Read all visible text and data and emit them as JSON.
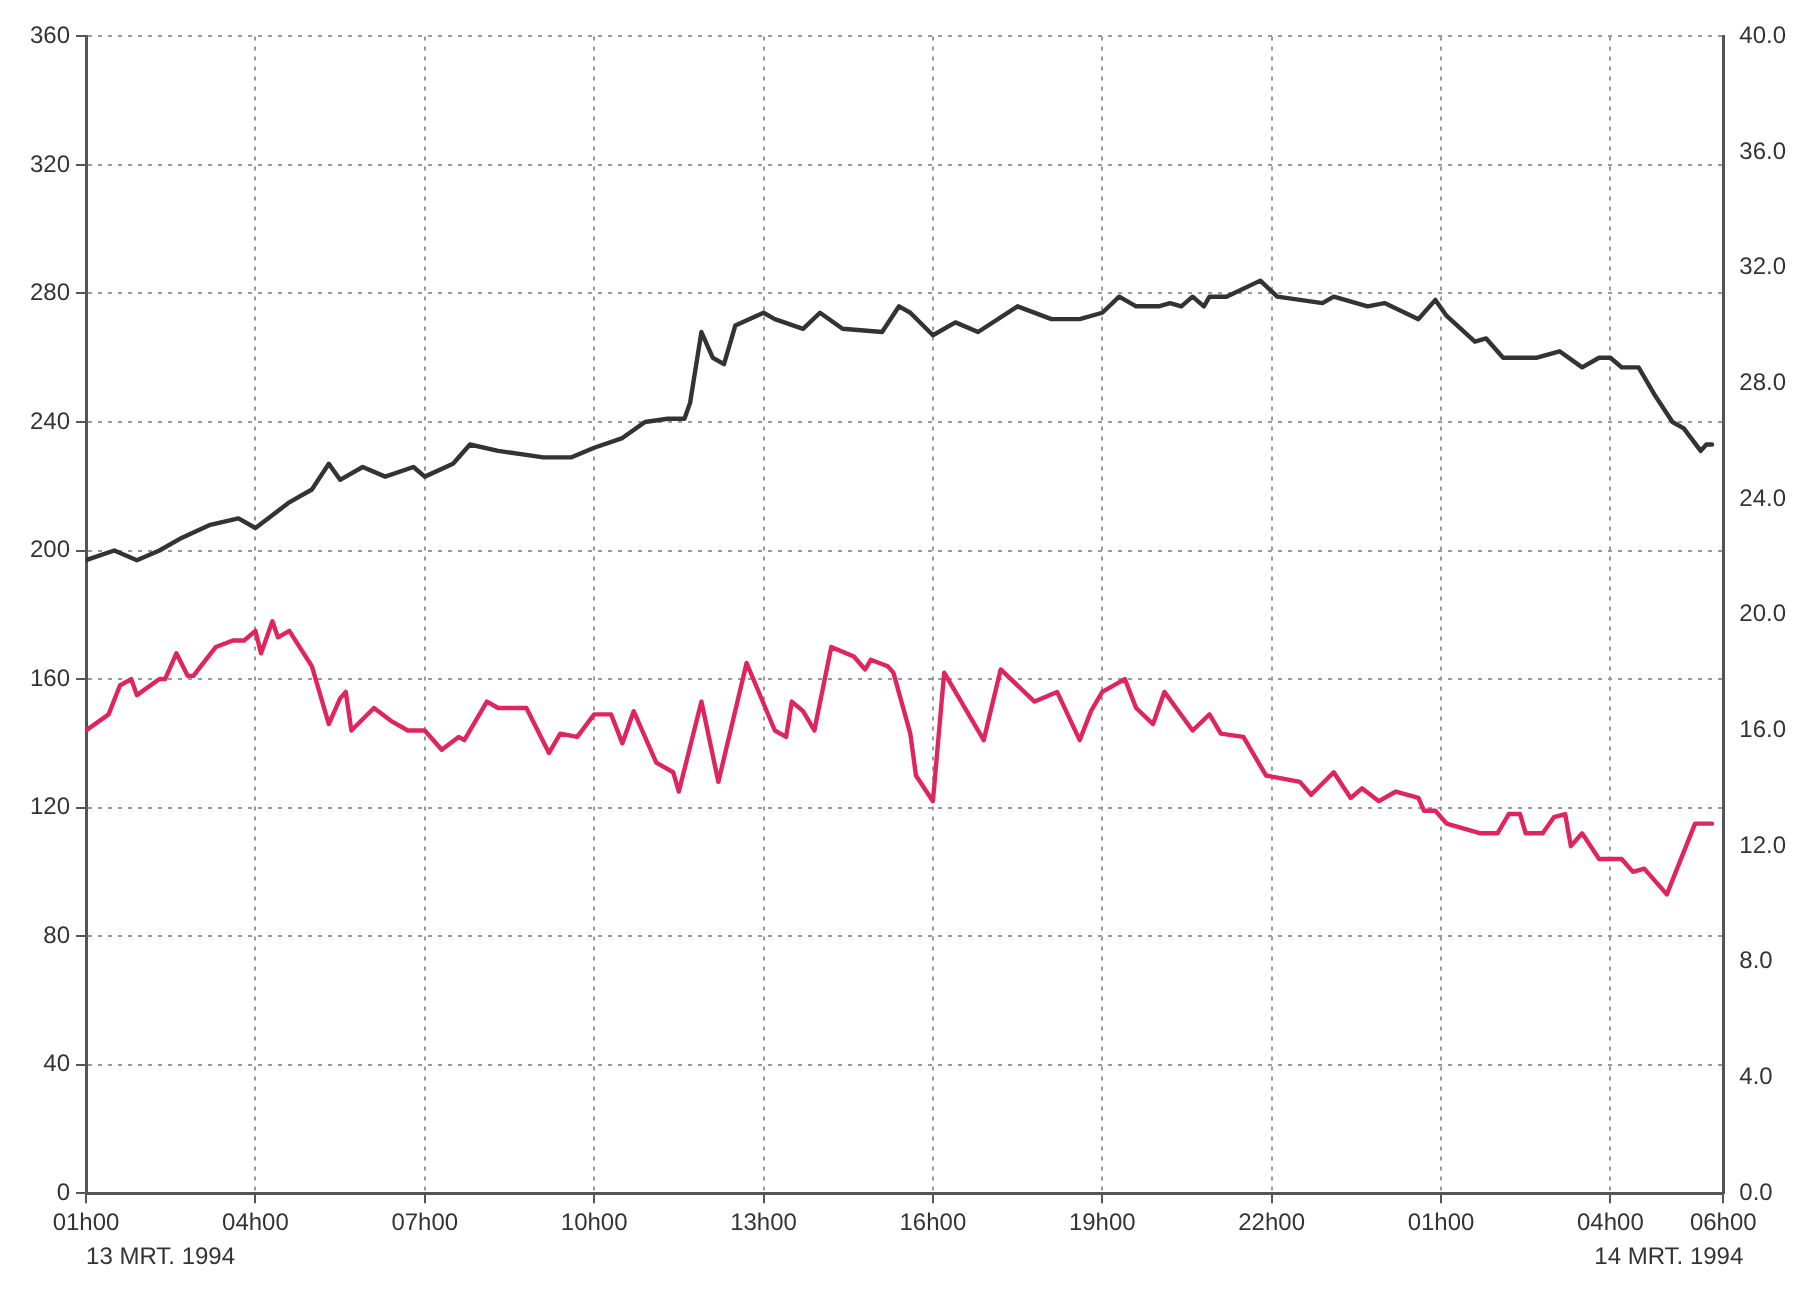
{
  "chart_data": {
    "type": "line",
    "xlim": [
      "1994-03-13T01:00",
      "1994-03-14T06:00"
    ],
    "xticks": [
      {
        "value": "1994-03-13T01:00",
        "label": "01h00"
      },
      {
        "value": "1994-03-13T04:00",
        "label": "04h00"
      },
      {
        "value": "1994-03-13T07:00",
        "label": "07h00"
      },
      {
        "value": "1994-03-13T10:00",
        "label": "10h00"
      },
      {
        "value": "1994-03-13T13:00",
        "label": "13h00"
      },
      {
        "value": "1994-03-13T16:00",
        "label": "16h00"
      },
      {
        "value": "1994-03-13T19:00",
        "label": "19h00"
      },
      {
        "value": "1994-03-13T22:00",
        "label": "22h00"
      },
      {
        "value": "1994-03-14T01:00",
        "label": "01h00"
      },
      {
        "value": "1994-03-14T04:00",
        "label": "04h00"
      },
      {
        "value": "1994-03-14T06:00",
        "label": "06h00"
      }
    ],
    "ylim": [
      0,
      360
    ],
    "yticks": [
      0,
      40,
      80,
      120,
      160,
      200,
      240,
      280,
      320,
      360
    ],
    "y2lim": [
      0,
      40
    ],
    "y2ticks": [
      {
        "value": 0,
        "label": "0.0"
      },
      {
        "value": 4,
        "label": "4.0"
      },
      {
        "value": 8,
        "label": "8.0"
      },
      {
        "value": 12,
        "label": "12.0"
      },
      {
        "value": 16,
        "label": "16.0"
      },
      {
        "value": 20,
        "label": "20.0"
      },
      {
        "value": 24,
        "label": "24.0"
      },
      {
        "value": 28,
        "label": "28.0"
      },
      {
        "value": 32,
        "label": "32.0"
      },
      {
        "value": 36,
        "label": "36.0"
      },
      {
        "value": 40,
        "label": "40.0"
      }
    ],
    "grid": true,
    "line_style": "solid",
    "annotations": [
      "13 MRT. 1994",
      "14 MRT. 1994"
    ],
    "series": [
      {
        "color": "#333333",
        "x": [
          "1994-03-13T01:00",
          "1994-03-13T01:30",
          "1994-03-13T01:54",
          "1994-03-13T02:18",
          "1994-03-13T02:42",
          "1994-03-13T03:12",
          "1994-03-13T03:42",
          "1994-03-13T04:00",
          "1994-03-13T04:18",
          "1994-03-13T04:36",
          "1994-03-13T05:00",
          "1994-03-13T05:18",
          "1994-03-13T05:30",
          "1994-03-13T05:54",
          "1994-03-13T06:18",
          "1994-03-13T06:48",
          "1994-03-13T07:00",
          "1994-03-13T07:30",
          "1994-03-13T07:48",
          "1994-03-13T08:18",
          "1994-03-13T09:06",
          "1994-03-13T09:36",
          "1994-03-13T10:00",
          "1994-03-13T10:30",
          "1994-03-13T10:54",
          "1994-03-13T11:18",
          "1994-03-13T11:36",
          "1994-03-13T11:42",
          "1994-03-13T11:54",
          "1994-03-13T12:06",
          "1994-03-13T12:18",
          "1994-03-13T12:30",
          "1994-03-13T13:00",
          "1994-03-13T13:12",
          "1994-03-13T13:42",
          "1994-03-13T14:00",
          "1994-03-13T14:24",
          "1994-03-13T15:06",
          "1994-03-13T15:24",
          "1994-03-13T15:36",
          "1994-03-13T16:00",
          "1994-03-13T16:24",
          "1994-03-13T16:48",
          "1994-03-13T17:30",
          "1994-03-13T18:06",
          "1994-03-13T18:36",
          "1994-03-13T19:00",
          "1994-03-13T19:18",
          "1994-03-13T19:36",
          "1994-03-13T20:00",
          "1994-03-13T20:12",
          "1994-03-13T20:24",
          "1994-03-13T20:36",
          "1994-03-13T20:48",
          "1994-03-13T20:54",
          "1994-03-13T21:12",
          "1994-03-13T21:48",
          "1994-03-13T22:06",
          "1994-03-13T22:54",
          "1994-03-13T23:06",
          "1994-03-13T23:42",
          "1994-03-14T00:00",
          "1994-03-14T00:36",
          "1994-03-14T00:54",
          "1994-03-14T01:06",
          "1994-03-14T01:36",
          "1994-03-14T01:48",
          "1994-03-14T02:06",
          "1994-03-14T02:30",
          "1994-03-14T02:42",
          "1994-03-14T03:06",
          "1994-03-14T03:30",
          "1994-03-14T03:48",
          "1994-03-14T04:00",
          "1994-03-14T04:12",
          "1994-03-14T04:30",
          "1994-03-14T04:48",
          "1994-03-14T05:06",
          "1994-03-14T05:18",
          "1994-03-14T05:36",
          "1994-03-14T05:42",
          "1994-03-14T05:48"
        ],
        "values": [
          197,
          200,
          197,
          200,
          204,
          208,
          210,
          207,
          211,
          215,
          219,
          227,
          222,
          226,
          223,
          226,
          223,
          227,
          233,
          231,
          229,
          229,
          232,
          235,
          240,
          241,
          241,
          246,
          268,
          260,
          258,
          270,
          274,
          272,
          269,
          274,
          269,
          268,
          276,
          274,
          267,
          271,
          268,
          276,
          272,
          272,
          274,
          279,
          276,
          276,
          277,
          276,
          279,
          276,
          279,
          279,
          284,
          279,
          277,
          279,
          276,
          277,
          272,
          278,
          273,
          265,
          266,
          260,
          260,
          260,
          262,
          257,
          260,
          260,
          257,
          257,
          248,
          240,
          238,
          231,
          233,
          233
        ]
      },
      {
        "color": "#e0245e",
        "x": [
          "1994-03-13T01:00",
          "1994-03-13T01:24",
          "1994-03-13T01:36",
          "1994-03-13T01:48",
          "1994-03-13T01:54",
          "1994-03-13T02:18",
          "1994-03-13T02:24",
          "1994-03-13T02:36",
          "1994-03-13T02:48",
          "1994-03-13T02:54",
          "1994-03-13T03:18",
          "1994-03-13T03:36",
          "1994-03-13T03:48",
          "1994-03-13T04:00",
          "1994-03-13T04:06",
          "1994-03-13T04:18",
          "1994-03-13T04:24",
          "1994-03-13T04:36",
          "1994-03-13T05:00",
          "1994-03-13T05:18",
          "1994-03-13T05:30",
          "1994-03-13T05:36",
          "1994-03-13T05:42",
          "1994-03-13T06:06",
          "1994-03-13T06:24",
          "1994-03-13T06:42",
          "1994-03-13T07:00",
          "1994-03-13T07:18",
          "1994-03-13T07:36",
          "1994-03-13T07:42",
          "1994-03-13T08:06",
          "1994-03-13T08:18",
          "1994-03-13T08:48",
          "1994-03-13T09:12",
          "1994-03-13T09:24",
          "1994-03-13T09:42",
          "1994-03-13T10:00",
          "1994-03-13T10:18",
          "1994-03-13T10:30",
          "1994-03-13T10:42",
          "1994-03-13T11:06",
          "1994-03-13T11:24",
          "1994-03-13T11:30",
          "1994-03-13T11:54",
          "1994-03-13T12:12",
          "1994-03-13T12:42",
          "1994-03-13T13:12",
          "1994-03-13T13:24",
          "1994-03-13T13:30",
          "1994-03-13T13:42",
          "1994-03-13T13:54",
          "1994-03-13T14:12",
          "1994-03-13T14:36",
          "1994-03-13T14:48",
          "1994-03-13T14:54",
          "1994-03-13T15:12",
          "1994-03-13T15:18",
          "1994-03-13T15:36",
          "1994-03-13T15:42",
          "1994-03-13T16:00",
          "1994-03-13T16:12",
          "1994-03-13T16:54",
          "1994-03-13T17:12",
          "1994-03-13T17:48",
          "1994-03-13T18:12",
          "1994-03-13T18:36",
          "1994-03-13T18:48",
          "1994-03-13T19:00",
          "1994-03-13T19:24",
          "1994-03-13T19:36",
          "1994-03-13T19:54",
          "1994-03-13T20:06",
          "1994-03-13T20:36",
          "1994-03-13T20:54",
          "1994-03-13T21:06",
          "1994-03-13T21:30",
          "1994-03-13T21:54",
          "1994-03-13T22:30",
          "1994-03-13T22:42",
          "1994-03-13T23:06",
          "1994-03-13T23:24",
          "1994-03-13T23:36",
          "1994-03-13T23:54",
          "1994-03-14T00:12",
          "1994-03-14T00:36",
          "1994-03-14T00:42",
          "1994-03-14T00:54",
          "1994-03-14T01:06",
          "1994-03-14T01:30",
          "1994-03-14T01:42",
          "1994-03-14T02:00",
          "1994-03-14T02:12",
          "1994-03-14T02:24",
          "1994-03-14T02:30",
          "1994-03-14T02:48",
          "1994-03-14T03:00",
          "1994-03-14T03:12",
          "1994-03-14T03:18",
          "1994-03-14T03:30",
          "1994-03-14T03:48",
          "1994-03-14T04:12",
          "1994-03-14T04:24",
          "1994-03-14T04:36",
          "1994-03-14T05:00",
          "1994-03-14T05:30",
          "1994-03-14T05:48"
        ],
        "values": [
          144,
          149,
          158,
          160,
          155,
          160,
          160,
          168,
          161,
          161,
          170,
          172,
          172,
          175,
          168,
          178,
          173,
          175,
          164,
          146,
          154,
          156,
          144,
          151,
          147,
          144,
          144,
          138,
          142,
          141,
          153,
          151,
          151,
          137,
          143,
          142,
          149,
          149,
          140,
          150,
          134,
          131,
          125,
          153,
          128,
          165,
          144,
          142,
          153,
          150,
          144,
          170,
          167,
          163,
          166,
          164,
          162,
          143,
          130,
          122,
          162,
          141,
          163,
          153,
          156,
          141,
          150,
          156,
          160,
          151,
          146,
          156,
          144,
          149,
          143,
          142,
          130,
          128,
          124,
          131,
          123,
          126,
          122,
          125,
          123,
          119,
          119,
          115,
          113,
          112,
          112,
          118,
          118,
          112,
          112,
          117,
          118,
          108,
          112,
          104,
          104,
          100,
          101,
          93,
          115,
          115
        ]
      }
    ]
  }
}
